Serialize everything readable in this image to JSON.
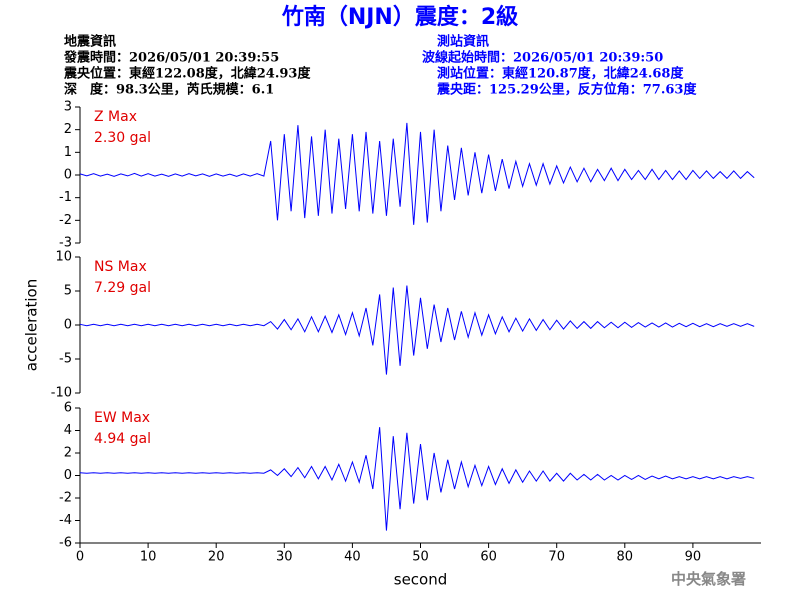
{
  "header": {
    "title": "竹南（NJN）震度：2級",
    "left": [
      "地震資訊",
      "發震時間：2026/05/01 20:39:55",
      "震央位置：東經122.08度，北緯24.93度",
      "深　度：98.3公里，芮氏規模：6.1"
    ],
    "right": [
      "測站資訊",
      "波線起始時間：2026/05/01 20:39:50",
      "測站位置：東經120.87度，北緯24.68度",
      "震央距：125.29公里，反方位角：77.63度"
    ],
    "footer": "中央氣象署"
  },
  "chart_data": [
    {
      "type": "line",
      "annotations": [
        "Z Max",
        "2.30 gal"
      ],
      "color": "#0000ff",
      "xlim": [
        0,
        100
      ],
      "ylim": [
        -3,
        3
      ],
      "yticks": [
        -3,
        -2,
        -1,
        0,
        1,
        2,
        3
      ],
      "x": [
        0,
        1,
        2,
        3,
        4,
        5,
        6,
        7,
        8,
        9,
        10,
        11,
        12,
        13,
        14,
        15,
        16,
        17,
        18,
        19,
        20,
        21,
        22,
        23,
        24,
        25,
        26,
        27,
        28,
        29,
        30,
        31,
        32,
        33,
        34,
        35,
        36,
        37,
        38,
        39,
        40,
        41,
        42,
        43,
        44,
        45,
        46,
        47,
        48,
        49,
        50,
        51,
        52,
        53,
        54,
        55,
        56,
        57,
        58,
        59,
        60,
        61,
        62,
        63,
        64,
        65,
        66,
        67,
        68,
        69,
        70,
        71,
        72,
        73,
        74,
        75,
        76,
        77,
        78,
        79,
        80,
        81,
        82,
        83,
        84,
        85,
        86,
        87,
        88,
        89,
        90,
        91,
        92,
        93,
        94,
        95,
        96,
        97,
        98,
        99
      ],
      "values": [
        0.05,
        -0.04,
        0.06,
        -0.05,
        0.04,
        -0.06,
        0.05,
        -0.04,
        0.07,
        -0.05,
        0.06,
        -0.05,
        0.04,
        -0.06,
        0.05,
        -0.05,
        0.06,
        -0.04,
        0.05,
        -0.06,
        0.05,
        -0.05,
        0.04,
        -0.06,
        0.05,
        -0.05,
        0.06,
        -0.05,
        1.5,
        -2.0,
        1.8,
        -1.6,
        2.2,
        -1.9,
        1.7,
        -1.8,
        2.0,
        -1.7,
        1.6,
        -1.5,
        1.8,
        -1.6,
        1.9,
        -1.7,
        1.5,
        -1.8,
        1.6,
        -1.4,
        2.3,
        -2.2,
        1.9,
        -2.1,
        2.0,
        -1.6,
        1.3,
        -1.1,
        1.2,
        -0.9,
        1.0,
        -0.8,
        0.9,
        -0.7,
        0.7,
        -0.6,
        0.6,
        -0.5,
        0.5,
        -0.45,
        0.5,
        -0.4,
        0.4,
        -0.35,
        0.35,
        -0.3,
        0.3,
        -0.3,
        0.25,
        -0.25,
        0.3,
        -0.25,
        0.25,
        -0.2,
        0.2,
        -0.2,
        0.25,
        -0.2,
        0.2,
        -0.2,
        0.18,
        -0.2,
        0.2,
        -0.15,
        0.18,
        -0.15,
        0.15,
        -0.15,
        0.18,
        -0.15,
        0.15,
        -0.12
      ]
    },
    {
      "type": "line",
      "annotations": [
        "NS Max",
        "7.29 gal"
      ],
      "ylabel": "acceleration",
      "color": "#0000ff",
      "xlim": [
        0,
        100
      ],
      "ylim": [
        -10,
        10
      ],
      "yticks": [
        -10,
        -5,
        0,
        5,
        10
      ],
      "x": [
        0,
        1,
        2,
        3,
        4,
        5,
        6,
        7,
        8,
        9,
        10,
        11,
        12,
        13,
        14,
        15,
        16,
        17,
        18,
        19,
        20,
        21,
        22,
        23,
        24,
        25,
        26,
        27,
        28,
        29,
        30,
        31,
        32,
        33,
        34,
        35,
        36,
        37,
        38,
        39,
        40,
        41,
        42,
        43,
        44,
        45,
        46,
        47,
        48,
        49,
        50,
        51,
        52,
        53,
        54,
        55,
        56,
        57,
        58,
        59,
        60,
        61,
        62,
        63,
        64,
        65,
        66,
        67,
        68,
        69,
        70,
        71,
        72,
        73,
        74,
        75,
        76,
        77,
        78,
        79,
        80,
        81,
        82,
        83,
        84,
        85,
        86,
        87,
        88,
        89,
        90,
        91,
        92,
        93,
        94,
        95,
        96,
        97,
        98,
        99
      ],
      "values": [
        0.1,
        -0.1,
        0.1,
        -0.1,
        0.1,
        -0.1,
        0.1,
        -0.1,
        0.1,
        -0.1,
        0.1,
        -0.1,
        0.1,
        -0.1,
        0.1,
        -0.1,
        0.1,
        -0.1,
        0.1,
        -0.1,
        0.1,
        -0.1,
        0.1,
        -0.1,
        0.1,
        -0.1,
        0.1,
        -0.1,
        0.5,
        -0.6,
        0.8,
        -0.7,
        0.9,
        -1.0,
        1.2,
        -1.0,
        1.3,
        -1.1,
        1.5,
        -1.4,
        1.8,
        -1.6,
        2.5,
        -3.0,
        4.5,
        -7.3,
        5.5,
        -6.0,
        5.8,
        -4.5,
        4.0,
        -3.5,
        3.0,
        -2.5,
        2.5,
        -2.2,
        2.0,
        -1.8,
        1.8,
        -1.5,
        1.5,
        -1.3,
        1.2,
        -1.0,
        1.0,
        -0.9,
        0.9,
        -0.8,
        0.8,
        -0.7,
        0.7,
        -0.6,
        0.6,
        -0.5,
        0.5,
        -0.5,
        0.5,
        -0.4,
        0.4,
        -0.4,
        0.4,
        -0.35,
        0.35,
        -0.3,
        0.3,
        -0.3,
        0.3,
        -0.3,
        0.25,
        -0.25,
        0.25,
        -0.25,
        0.2,
        -0.25,
        0.2,
        -0.2,
        0.2,
        -0.2,
        0.2,
        -0.2
      ]
    },
    {
      "type": "line",
      "annotations": [
        "EW Max",
        "4.94 gal"
      ],
      "xlabel": "second",
      "color": "#0000ff",
      "xlim": [
        0,
        100
      ],
      "ylim": [
        -6,
        6
      ],
      "yticks": [
        -6,
        -4,
        -2,
        0,
        2,
        4,
        6
      ],
      "xticks": [
        0,
        10,
        20,
        30,
        40,
        50,
        60,
        70,
        80,
        90
      ],
      "x": [
        0,
        1,
        2,
        3,
        4,
        5,
        6,
        7,
        8,
        9,
        10,
        11,
        12,
        13,
        14,
        15,
        16,
        17,
        18,
        19,
        20,
        21,
        22,
        23,
        24,
        25,
        26,
        27,
        28,
        29,
        30,
        31,
        32,
        33,
        34,
        35,
        36,
        37,
        38,
        39,
        40,
        41,
        42,
        43,
        44,
        45,
        46,
        47,
        48,
        49,
        50,
        51,
        52,
        53,
        54,
        55,
        56,
        57,
        58,
        59,
        60,
        61,
        62,
        63,
        64,
        65,
        66,
        67,
        68,
        69,
        70,
        71,
        72,
        73,
        74,
        75,
        76,
        77,
        78,
        79,
        80,
        81,
        82,
        83,
        84,
        85,
        86,
        87,
        88,
        89,
        90,
        91,
        92,
        93,
        94,
        95,
        96,
        97,
        98,
        99
      ],
      "values": [
        0.25,
        0.2,
        0.25,
        0.2,
        0.25,
        0.2,
        0.25,
        0.2,
        0.25,
        0.2,
        0.25,
        0.2,
        0.25,
        0.2,
        0.25,
        0.2,
        0.25,
        0.2,
        0.25,
        0.2,
        0.25,
        0.2,
        0.25,
        0.2,
        0.25,
        0.2,
        0.25,
        0.2,
        0.5,
        0.0,
        0.6,
        -0.1,
        0.7,
        -0.2,
        0.8,
        -0.3,
        0.8,
        -0.4,
        1.0,
        -0.5,
        1.2,
        -0.6,
        1.8,
        -1.2,
        4.3,
        -4.9,
        3.5,
        -3.0,
        3.8,
        -2.5,
        2.8,
        -2.2,
        2.0,
        -1.5,
        1.4,
        -1.2,
        1.2,
        -1.0,
        0.9,
        -0.9,
        0.8,
        -0.8,
        0.6,
        -0.7,
        0.5,
        -0.6,
        0.4,
        -0.5,
        0.4,
        -0.5,
        0.2,
        -0.5,
        0.2,
        -0.4,
        0.1,
        -0.4,
        0.1,
        -0.4,
        0.0,
        -0.4,
        0.0,
        -0.35,
        0.0,
        -0.35,
        -0.05,
        -0.3,
        -0.05,
        -0.3,
        -0.1,
        -0.3,
        -0.1,
        -0.3,
        -0.1,
        -0.3,
        -0.1,
        -0.3,
        -0.1,
        -0.25,
        -0.1,
        -0.25
      ]
    }
  ]
}
